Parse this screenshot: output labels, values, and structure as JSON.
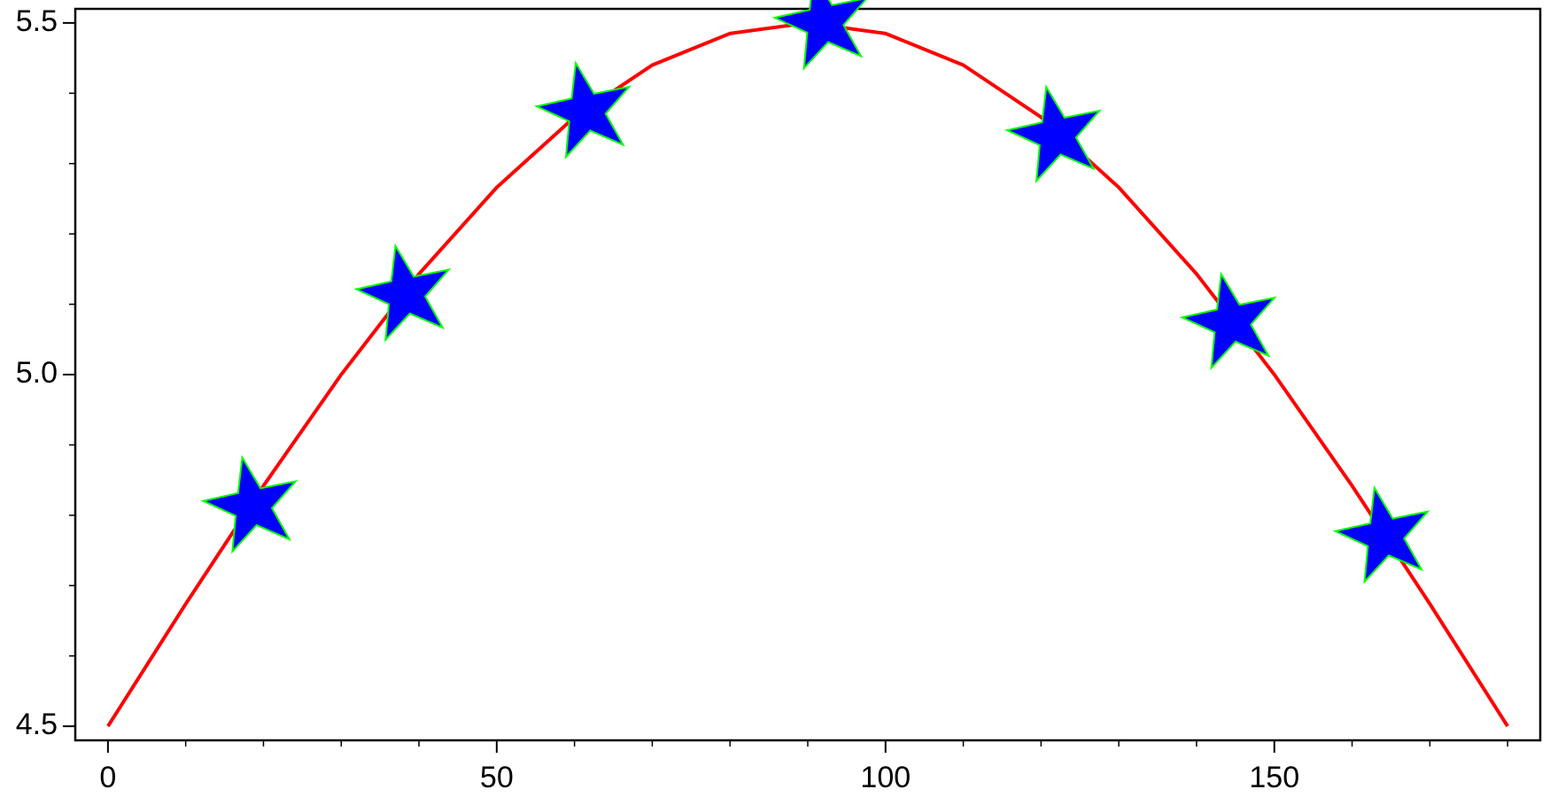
{
  "chart_data": {
    "type": "line",
    "xlim": [
      -4.2,
      184.2
    ],
    "ylim": [
      4.48,
      5.52
    ],
    "xticks": [
      0,
      50,
      100,
      150
    ],
    "yticks": [
      4.5,
      {
        "value": 5,
        "label": "5.0"
      },
      5.5
    ],
    "xticks_minor": [
      10,
      20,
      30,
      40,
      60,
      70,
      80,
      90,
      110,
      120,
      130,
      140,
      160,
      170,
      180
    ],
    "yticks_minor": [
      4.6,
      4.7,
      4.8,
      4.9,
      5.1,
      5.2,
      5.3,
      5.4
    ],
    "series": [
      {
        "color": "#ff0000",
        "marker": "none",
        "x": [
          0,
          10,
          20,
          30,
          40,
          50,
          60,
          70,
          80,
          90,
          100,
          110,
          120,
          130,
          140,
          150,
          160,
          170,
          180
        ],
        "values": [
          4.5,
          4.674,
          4.842,
          5.0,
          5.143,
          5.266,
          5.366,
          5.44,
          5.485,
          5.5,
          5.485,
          5.44,
          5.366,
          5.266,
          5.143,
          5.0,
          4.842,
          4.674,
          4.5
        ]
      },
      {
        "color": "#0000ff",
        "edgecolor": "#00ff00",
        "marker": "star",
        "x": [
          18.6,
          38.3,
          61.5,
          92.1,
          122.0,
          144.5,
          164.2
        ],
        "values": [
          4.813,
          5.114,
          5.374,
          5.5,
          5.34,
          5.074,
          4.77
        ]
      }
    ]
  }
}
